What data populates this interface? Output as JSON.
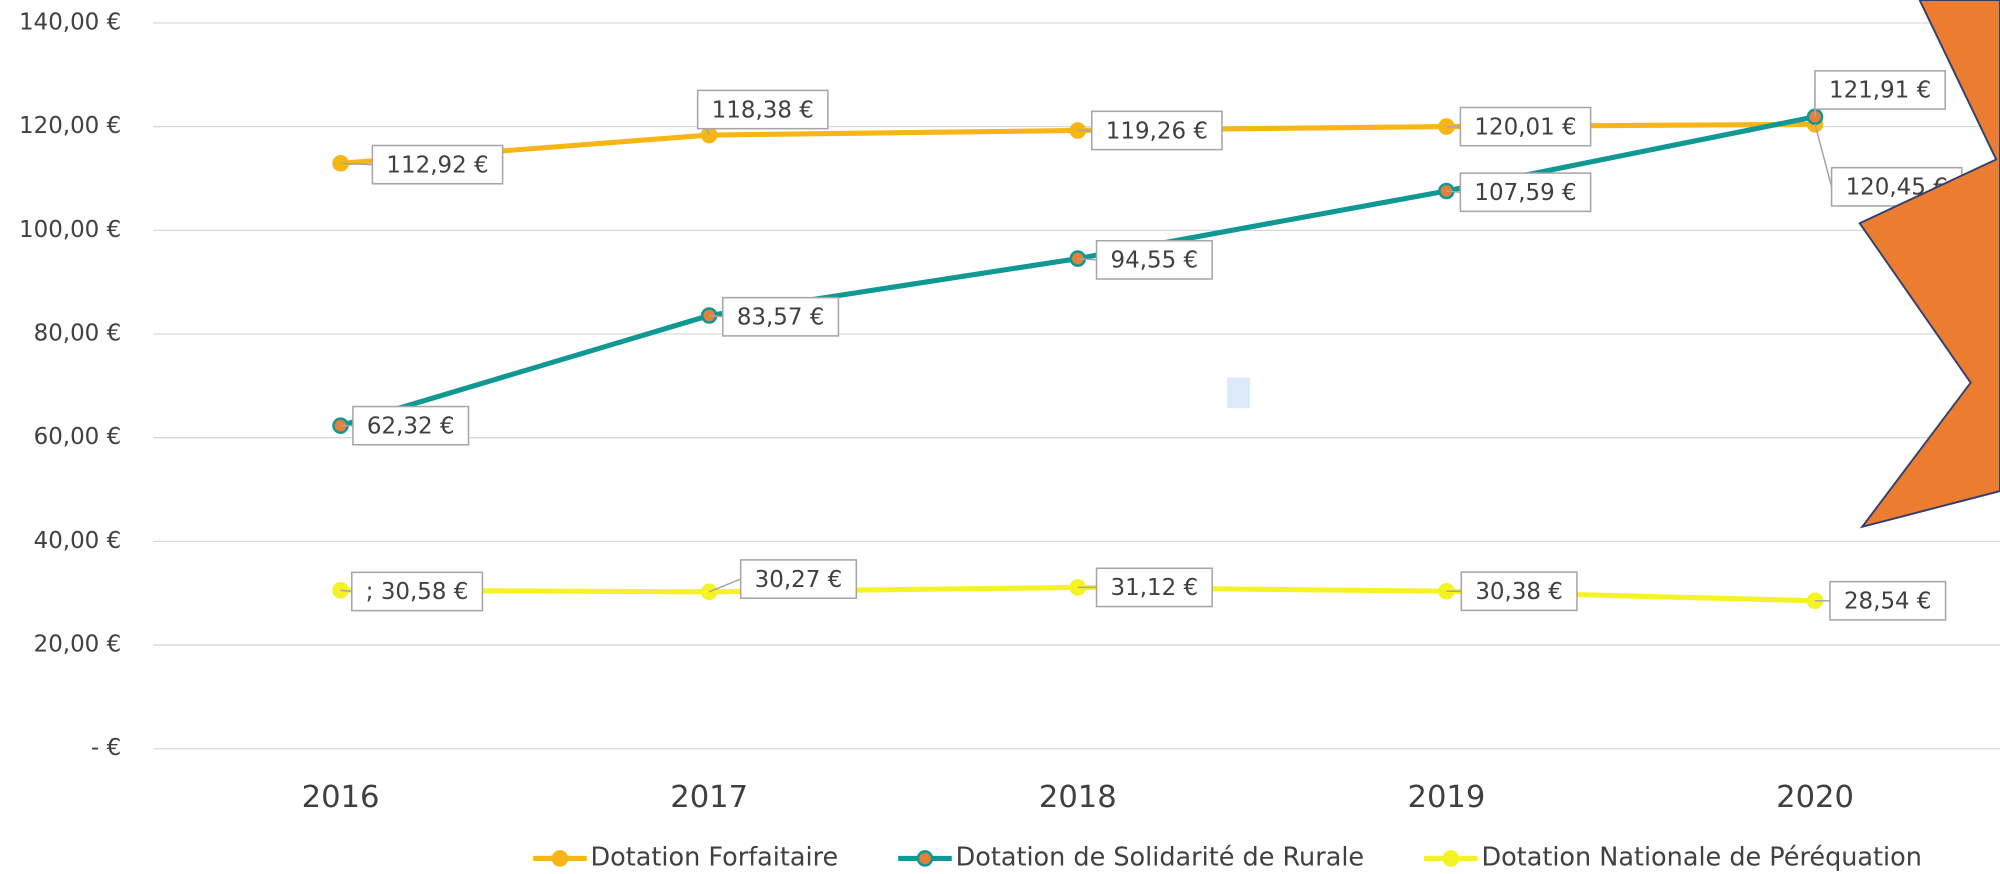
{
  "chart_data": {
    "type": "line",
    "categories": [
      "2016",
      "2017",
      "2018",
      "2019",
      "2020"
    ],
    "series": [
      {
        "name": "Dotation Forfaitaire",
        "color": "#f7b516",
        "marker_fill": "#f7b516",
        "values": [
          112.92,
          118.38,
          119.26,
          120.01,
          120.45
        ],
        "value_labels": [
          "112,92 €",
          "118,38 €",
          "119,26 €",
          "120,01 €",
          "120,45 €"
        ]
      },
      {
        "name": "Dotation de Solidarité de Rurale",
        "color": "#0f9894",
        "marker_fill": "#e4803a",
        "values": [
          62.32,
          83.57,
          94.55,
          107.59,
          121.91
        ],
        "value_labels": [
          "62,32 €",
          "83,57 €",
          "94,55 €",
          "107,59 €",
          "121,91 €"
        ]
      },
      {
        "name": "Dotation Nationale de Péréquation",
        "color": "#f5f225",
        "marker_fill": "#f5f225",
        "values": [
          30.58,
          30.27,
          31.12,
          30.38,
          28.54
        ],
        "value_labels": [
          "; 30,58 €",
          "30,27 €",
          "31,12 €",
          "30,38 €",
          "28,54 €"
        ]
      }
    ],
    "ylim": [
      0,
      140
    ],
    "yticks": [
      {
        "value": 0,
        "label": "-   €"
      },
      {
        "value": 20,
        "label": "20,00 €"
      },
      {
        "value": 40,
        "label": "40,00 €"
      },
      {
        "value": 60,
        "label": "60,00 €"
      },
      {
        "value": 80,
        "label": "80,00 €"
      },
      {
        "value": 100,
        "label": "100,00 €"
      },
      {
        "value": 120,
        "label": "120,00 €"
      },
      {
        "value": 140,
        "label": "140,00 €"
      }
    ],
    "grid": true,
    "legend": "bottom"
  }
}
